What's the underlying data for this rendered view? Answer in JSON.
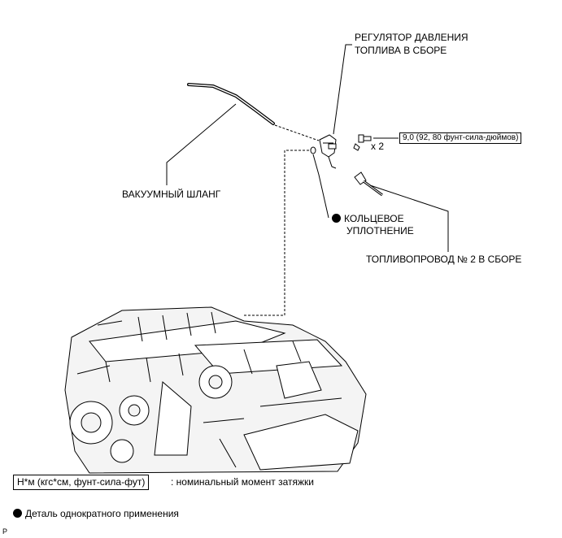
{
  "labels": {
    "regulator_line1": "РЕГУЛЯТОР ДАВЛЕНИЯ",
    "regulator_line2": "ТОПЛИВА В СБОРЕ",
    "vacuum_hose": "ВАКУУМНЫЙ ШЛАНГ",
    "oring_line1": "КОЛЬЦЕВОЕ",
    "oring_line2": "УПЛОТНЕНИЕ",
    "fuel_pipe": "ТОПЛИВОПРОВОД № 2 В СБОРЕ",
    "torque_spec": "9,0 (92, 80 фунт-сила-дюймов)",
    "bolt_qty": "x 2"
  },
  "legend": {
    "torque_unit_box": "Н*м (кгс*см, фунт-сила-фут)",
    "torque_desc": ": номинальный момент затяжки",
    "nonreusable": "Деталь однократного применения"
  },
  "corner_mark": "P",
  "colors": {
    "ink": "#000000",
    "background": "#ffffff",
    "engine_fill": "#f4f4f4"
  }
}
